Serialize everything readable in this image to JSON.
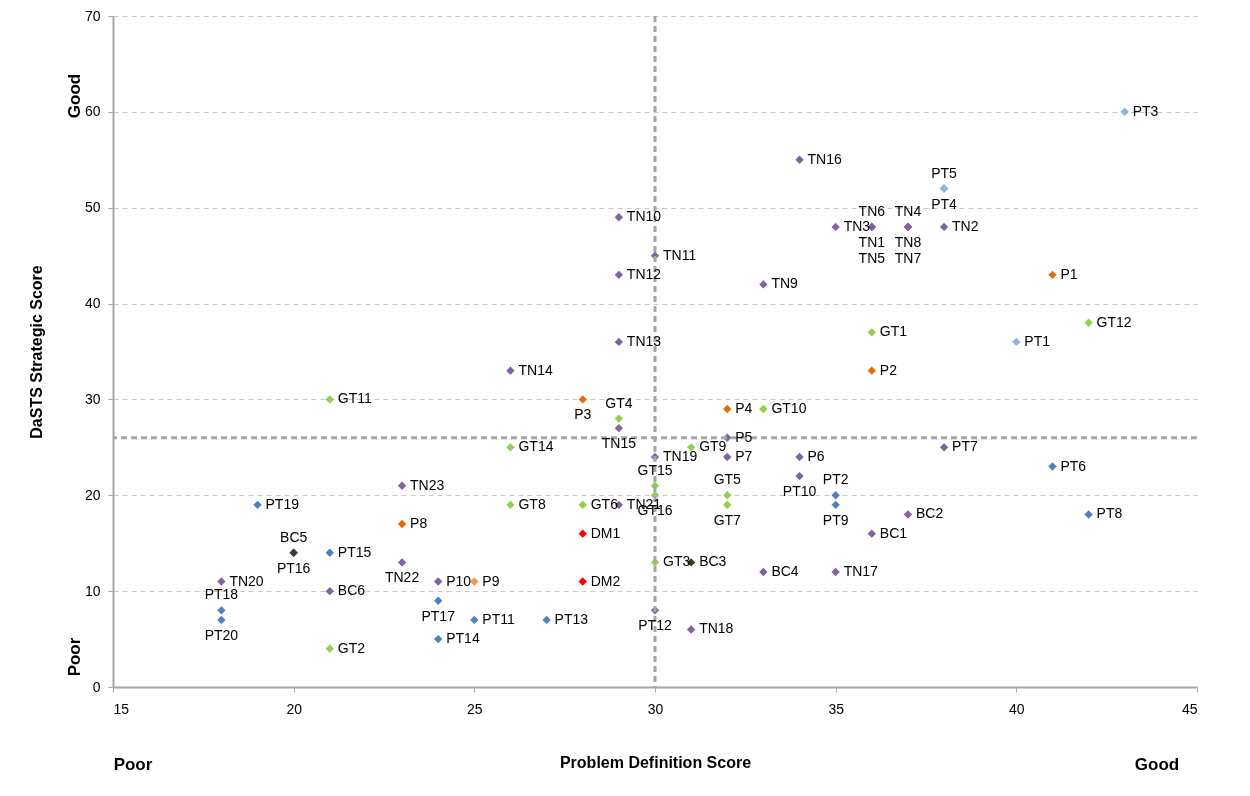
{
  "chart_data": {
    "type": "scatter",
    "xlabel": "Problem Definition Score",
    "ylabel": "DaSTS Strategic Score",
    "x": [
      43,
      34,
      38,
      38,
      29,
      35,
      36,
      36,
      36,
      37,
      37,
      37,
      38,
      30,
      29,
      41,
      33,
      42,
      36,
      40,
      29,
      36,
      26,
      21,
      28,
      29,
      32,
      33,
      29,
      32,
      26,
      31,
      38,
      30,
      32,
      34,
      41,
      34,
      30,
      30,
      32,
      32,
      23,
      35,
      35,
      19,
      26,
      28,
      29,
      42,
      37,
      23,
      36,
      28,
      20,
      20,
      21,
      30,
      31,
      23,
      18,
      24,
      25,
      28,
      33,
      35,
      21,
      24,
      18,
      18,
      25,
      27,
      30,
      24,
      31,
      21
    ],
    "values": [
      60,
      55,
      52,
      52,
      49,
      48,
      48,
      48,
      48,
      48,
      48,
      48,
      48,
      45,
      43,
      43,
      42,
      38,
      37,
      36,
      36,
      33,
      33,
      30,
      30,
      28,
      29,
      29,
      27,
      26,
      25,
      25,
      25,
      24,
      24,
      24,
      23,
      22,
      21,
      20,
      20,
      19,
      21,
      20,
      19,
      19,
      19,
      19,
      19,
      18,
      18,
      17,
      16,
      16,
      14,
      14,
      14,
      13,
      13,
      13,
      11,
      11,
      11,
      11,
      12,
      12,
      10,
      9,
      8,
      7,
      7,
      7,
      8,
      5,
      6,
      4
    ],
    "colors": [
      "#8db3e2",
      "#8064a2",
      "#8db3e2",
      "#8db3e2",
      "#8064a2",
      "#8064a2",
      "#8064a2",
      "#8064a2",
      "#8064a2",
      "#8064a2",
      "#8064a2",
      "#8064a2",
      "#8064a2",
      "#8064a2",
      "#8064a2",
      "#e46c0a",
      "#8064a2",
      "#92d050",
      "#92d050",
      "#8db3e2",
      "#8064a2",
      "#e46c0a",
      "#8064a2",
      "#92d050",
      "#e46c0a",
      "#92d050",
      "#e46c0a",
      "#92d050",
      "#8064a2",
      "#8064a2",
      "#92d050",
      "#92d050",
      "#8064a2",
      "#8064a2",
      "#8064a2",
      "#8064a2",
      "#4f81bd",
      "#8064a2",
      "#92d050",
      "#92d050",
      "#92d050",
      "#92d050",
      "#8064a2",
      "#4f81bd",
      "#4f81bd",
      "#4f81bd",
      "#92d050",
      "#92d050",
      "#8064a2",
      "#4f81bd",
      "#8064a2",
      "#e46c0a",
      "#8064a2",
      "#ff0000",
      "#4f81bd",
      "#3d3d29",
      "#4f81bd",
      "#92d050",
      "#3d3d29",
      "#8064a2",
      "#8064a2",
      "#8064a2",
      "#f79646",
      "#ff0000",
      "#8064a2",
      "#8064a2",
      "#8064a2",
      "#4f81bd",
      "#4f81bd",
      "#4f81bd",
      "#4f81bd",
      "#4f81bd",
      "#8064a2",
      "#4f81bd",
      "#8064a2",
      "#92d050"
    ],
    "xlim": [
      15,
      45
    ],
    "xticks": [
      15,
      20,
      25,
      30,
      35,
      40,
      45
    ],
    "ylim": [
      0,
      70
    ],
    "yticks": [
      0,
      10,
      20,
      30,
      40,
      50,
      60,
      70
    ],
    "grid": "y",
    "marker": "diamond",
    "ref_lines": [
      {
        "axis": "x",
        "value": 30,
        "color": "#a6a6a6",
        "line_style": "dashed"
      },
      {
        "axis": "y",
        "value": 26,
        "color": "#a6a6a6",
        "line_style": "dashed"
      }
    ],
    "annotations": [
      "Good",
      "Poor",
      "Poor",
      "Good",
      {
        "text": "PT3",
        "x": 43,
        "y": 60
      },
      {
        "text": "TN16",
        "x": 34,
        "y": 55
      },
      {
        "text": "PT5",
        "x": 38,
        "y": 52
      },
      {
        "text": "PT4",
        "x": 38,
        "y": 52
      },
      {
        "text": "TN10",
        "x": 29,
        "y": 49
      },
      {
        "text": "TN3",
        "x": 35,
        "y": 48
      },
      {
        "text": "TN6",
        "x": 36,
        "y": 48
      },
      {
        "text": "TN1",
        "x": 36,
        "y": 48
      },
      {
        "text": "TN5",
        "x": 36,
        "y": 48
      },
      {
        "text": "TN4",
        "x": 37,
        "y": 48
      },
      {
        "text": "TN8",
        "x": 37,
        "y": 48
      },
      {
        "text": "TN7",
        "x": 37,
        "y": 48
      },
      {
        "text": "TN2",
        "x": 38,
        "y": 48
      },
      {
        "text": "TN11",
        "x": 30,
        "y": 45
      },
      {
        "text": "TN12",
        "x": 29,
        "y": 43
      },
      {
        "text": "P1",
        "x": 41,
        "y": 43
      },
      {
        "text": "TN9",
        "x": 33,
        "y": 42
      },
      {
        "text": "GT12",
        "x": 42,
        "y": 38
      },
      {
        "text": "GT1",
        "x": 36,
        "y": 37
      },
      {
        "text": "PT1",
        "x": 40,
        "y": 36
      },
      {
        "text": "TN13",
        "x": 29,
        "y": 36
      },
      {
        "text": "P2",
        "x": 36,
        "y": 33
      },
      {
        "text": "TN14",
        "x": 26,
        "y": 33
      },
      {
        "text": "GT11",
        "x": 21,
        "y": 30
      },
      {
        "text": "P3",
        "x": 28,
        "y": 30
      },
      {
        "text": "GT4",
        "x": 29,
        "y": 28
      },
      {
        "text": "P4",
        "x": 32,
        "y": 29
      },
      {
        "text": "GT10",
        "x": 33,
        "y": 29
      },
      {
        "text": "TN15",
        "x": 29,
        "y": 27
      },
      {
        "text": "P5",
        "x": 32,
        "y": 26
      },
      {
        "text": "GT14",
        "x": 26,
        "y": 25
      },
      {
        "text": "GT9",
        "x": 31,
        "y": 25
      },
      {
        "text": "PT7",
        "x": 38,
        "y": 25
      },
      {
        "text": "TN19",
        "x": 30,
        "y": 24
      },
      {
        "text": "P7",
        "x": 32,
        "y": 24
      },
      {
        "text": "P6",
        "x": 34,
        "y": 24
      },
      {
        "text": "PT6",
        "x": 41,
        "y": 23
      },
      {
        "text": "PT10",
        "x": 34,
        "y": 22
      },
      {
        "text": "GT15",
        "x": 30,
        "y": 21
      },
      {
        "text": "GT16",
        "x": 30,
        "y": 20
      },
      {
        "text": "GT5",
        "x": 32,
        "y": 20
      },
      {
        "text": "GT7",
        "x": 32,
        "y": 19
      },
      {
        "text": "TN23",
        "x": 23,
        "y": 21
      },
      {
        "text": "PT2",
        "x": 35,
        "y": 20
      },
      {
        "text": "PT9",
        "x": 35,
        "y": 19
      },
      {
        "text": "PT19",
        "x": 19,
        "y": 19
      },
      {
        "text": "GT8",
        "x": 26,
        "y": 19
      },
      {
        "text": "GT6",
        "x": 28,
        "y": 19
      },
      {
        "text": "TN21",
        "x": 29,
        "y": 19
      },
      {
        "text": "PT8",
        "x": 42,
        "y": 18
      },
      {
        "text": "BC2",
        "x": 37,
        "y": 18
      },
      {
        "text": "P8",
        "x": 23,
        "y": 17
      },
      {
        "text": "BC1",
        "x": 36,
        "y": 16
      },
      {
        "text": "DM1",
        "x": 28,
        "y": 16
      },
      {
        "text": "BC5",
        "x": 20,
        "y": 14
      },
      {
        "text": "PT16",
        "x": 20,
        "y": 14
      },
      {
        "text": "PT15",
        "x": 21,
        "y": 14
      },
      {
        "text": "GT3",
        "x": 30,
        "y": 13
      },
      {
        "text": "BC3",
        "x": 31,
        "y": 13
      },
      {
        "text": "TN22",
        "x": 23,
        "y": 13
      },
      {
        "text": "TN20",
        "x": 18,
        "y": 11
      },
      {
        "text": "P10",
        "x": 24,
        "y": 11
      },
      {
        "text": "P9",
        "x": 25,
        "y": 11
      },
      {
        "text": "DM2",
        "x": 28,
        "y": 11
      },
      {
        "text": "BC4",
        "x": 33,
        "y": 12
      },
      {
        "text": "TN17",
        "x": 35,
        "y": 12
      },
      {
        "text": "BC6",
        "x": 21,
        "y": 10
      },
      {
        "text": "PT17",
        "x": 24,
        "y": 9
      },
      {
        "text": "PT18",
        "x": 18,
        "y": 8
      },
      {
        "text": "PT20",
        "x": 18,
        "y": 7
      },
      {
        "text": "PT11",
        "x": 25,
        "y": 7
      },
      {
        "text": "PT13",
        "x": 27,
        "y": 7
      },
      {
        "text": "PT12",
        "x": 30,
        "y": 8
      },
      {
        "text": "PT14",
        "x": 24,
        "y": 5
      },
      {
        "text": "TN18",
        "x": 31,
        "y": 6
      },
      {
        "text": "GT2",
        "x": 21,
        "y": 4
      }
    ]
  }
}
